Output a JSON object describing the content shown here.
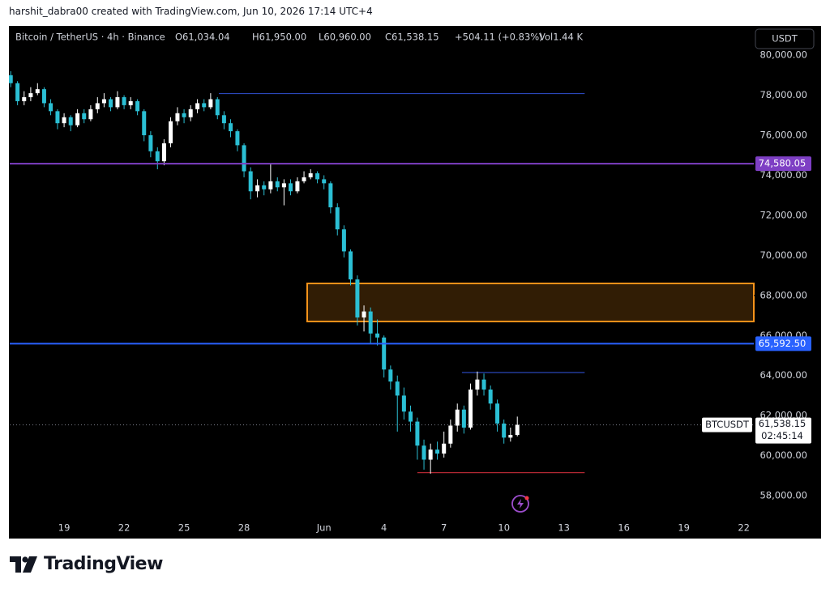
{
  "header": {
    "credit": "harshit_dabra00 created with TradingView.com, Jun 10, 2026 17:14 UTC+4"
  },
  "footer": {
    "logo": "TradingView"
  },
  "chart_data": {
    "type": "candlestick",
    "symbol_info": "Bitcoin / TetherUS · 4h · Binance",
    "ohlc_legend": [
      "O61,034.04",
      "H61,950.00",
      "L60,960.00",
      "C61,538.15",
      "+504.11 (+0.83%)",
      "Vol1.44 K"
    ],
    "currency_button": "USDT",
    "up_color": "#ffffff",
    "down_color": "#2bbfd4",
    "x": [
      16.33,
      16.67,
      17,
      17.33,
      17.67,
      18,
      18.33,
      18.67,
      19,
      19.33,
      19.67,
      20,
      20.33,
      20.67,
      21,
      21.33,
      21.67,
      22,
      22.33,
      22.67,
      23,
      23.33,
      23.67,
      24,
      24.33,
      24.67,
      25,
      25.33,
      25.67,
      26,
      26.33,
      26.67,
      27,
      27.33,
      27.67,
      28,
      28.33,
      28.67,
      29,
      29.33,
      29.67,
      30,
      30.33,
      30.67,
      31,
      31.33,
      31.67,
      32,
      32.33,
      32.67,
      33,
      33.33,
      33.67,
      34,
      34.33,
      34.67,
      35,
      35.33,
      35.67,
      36,
      36.33,
      36.67,
      37,
      37.33,
      37.67,
      38,
      38.33,
      38.67,
      39,
      39.33,
      39.67,
      40,
      40.33,
      40.67,
      41,
      41.33,
      41.67
    ],
    "open": [
      79000,
      78600,
      77700,
      77900,
      78100,
      78300,
      77600,
      77200,
      76600,
      76900,
      76500,
      77100,
      76800,
      77300,
      77600,
      77800,
      77400,
      77900,
      77500,
      77700,
      77200,
      76000,
      75200,
      74700,
      75600,
      76700,
      77100,
      76900,
      77300,
      77600,
      77400,
      77800,
      77000,
      76600,
      76200,
      75500,
      74200,
      73200,
      73500,
      73300,
      73700,
      73400,
      73600,
      73200,
      73700,
      73900,
      74100,
      73800,
      73600,
      72400,
      71300,
      70200,
      68800,
      66900,
      67200,
      66100,
      65900,
      64300,
      63700,
      63000,
      62200,
      61700,
      60500,
      59800,
      60300,
      60100,
      60600,
      61500,
      62300,
      61400,
      63300,
      63800,
      63300,
      62600,
      61600,
      60900,
      61034.04
    ],
    "high": [
      79200,
      78700,
      78200,
      78400,
      78600,
      78400,
      77800,
      77300,
      77100,
      77000,
      77300,
      77300,
      77500,
      77900,
      78100,
      77900,
      78200,
      78000,
      77900,
      77800,
      77300,
      76200,
      75400,
      75800,
      76900,
      77400,
      77300,
      77500,
      77800,
      77800,
      78100,
      77900,
      77200,
      76800,
      76300,
      75600,
      74400,
      73800,
      73700,
      74600,
      73900,
      73800,
      73800,
      73900,
      74200,
      74300,
      74200,
      74000,
      73700,
      72600,
      71500,
      70300,
      69000,
      67500,
      67400,
      66800,
      66000,
      64500,
      64000,
      63400,
      62500,
      61900,
      60800,
      60600,
      60700,
      61200,
      61800,
      62600,
      62500,
      63600,
      64200,
      64100,
      63500,
      62800,
      61800,
      61400,
      61950
    ],
    "low": [
      78400,
      77500,
      77500,
      77700,
      78000,
      77400,
      77000,
      76300,
      76400,
      76200,
      76400,
      76600,
      76700,
      77100,
      77400,
      77200,
      77300,
      77300,
      77300,
      77000,
      75700,
      74900,
      74300,
      74500,
      75400,
      76500,
      76600,
      76700,
      77100,
      77200,
      77300,
      76800,
      76300,
      75900,
      75200,
      73900,
      72800,
      72900,
      73000,
      73100,
      73200,
      72500,
      73000,
      73100,
      73600,
      73800,
      73600,
      73300,
      72100,
      71000,
      69900,
      68500,
      66500,
      66200,
      65600,
      65500,
      63900,
      63300,
      61200,
      61800,
      61200,
      59800,
      59300,
      59100,
      59800,
      59900,
      60400,
      61200,
      61100,
      61300,
      63000,
      63000,
      62300,
      61200,
      60600,
      60700,
      60960
    ],
    "close": [
      78600,
      77700,
      77900,
      78100,
      78300,
      77600,
      77200,
      76600,
      76900,
      76500,
      77100,
      76800,
      77300,
      77600,
      77800,
      77400,
      77900,
      77500,
      77700,
      77200,
      76000,
      75200,
      74700,
      75600,
      76700,
      77100,
      76900,
      77300,
      77600,
      77400,
      77800,
      77000,
      76600,
      76200,
      75500,
      74200,
      73200,
      73500,
      73300,
      73700,
      73400,
      73600,
      73200,
      73700,
      73900,
      74100,
      73800,
      73600,
      72400,
      71300,
      70200,
      68800,
      66900,
      67200,
      66100,
      65900,
      64300,
      63700,
      63000,
      62200,
      61700,
      60500,
      59800,
      60300,
      60100,
      60600,
      61500,
      62300,
      61400,
      63300,
      63800,
      63300,
      62600,
      61600,
      60900,
      61034.04,
      61538.15
    ],
    "xlim": [
      16.28,
      53.5
    ],
    "ylim": [
      56870,
      81460
    ],
    "xticks": [
      19,
      22,
      25,
      28,
      {
        "value": 32,
        "label": "Jun"
      },
      {
        "value": 35,
        "label": "4"
      },
      {
        "value": 38,
        "label": "7"
      },
      {
        "value": 41,
        "label": "10"
      },
      {
        "value": 44,
        "label": "13"
      },
      {
        "value": 47,
        "label": "16"
      },
      {
        "value": 50,
        "label": "19"
      },
      {
        "value": 53,
        "label": "22"
      }
    ],
    "yticks": [
      {
        "value": 58000,
        "label": "58,000.00"
      },
      {
        "value": 60000,
        "label": "60,000.00"
      },
      {
        "value": 62000,
        "label": "62,000.00"
      },
      {
        "value": 64000,
        "label": "64,000.00"
      },
      {
        "value": 66000,
        "label": "66,000.00"
      },
      {
        "value": 68000,
        "label": "68,000.00"
      },
      {
        "value": 70000,
        "label": "70,000.00"
      },
      {
        "value": 72000,
        "label": "72,000.00"
      },
      {
        "value": 74000,
        "label": "74,000.00"
      },
      {
        "value": 76000,
        "label": "76,000.00"
      },
      {
        "value": 78000,
        "label": "78,000.00"
      },
      {
        "value": 80000,
        "label": "80,000.00"
      }
    ],
    "hlines": [
      {
        "value": 74580.05,
        "label": "74,580.05",
        "color": "#7e3fc4"
      },
      {
        "value": 65592.5,
        "label": "65,592.50",
        "color": "#2962ff"
      }
    ],
    "rays": [
      {
        "x": [
          26.74,
          45.04
        ],
        "value": 78080,
        "color": "#2a47b8"
      },
      {
        "x": [
          38.9,
          45.04
        ],
        "value": 64150,
        "color": "#2a47b8"
      },
      {
        "x": [
          36.67,
          45.04
        ],
        "value": 59150,
        "color": "#b22833"
      }
    ],
    "zone": {
      "x_start": 31.16,
      "top": 68600,
      "bottom": 66700,
      "color": "#f7931a"
    },
    "last_price": {
      "value": 61538.15,
      "label": "61,538.15",
      "countdown": "02:45:14",
      "symbol": "BTCUSDT"
    }
  }
}
